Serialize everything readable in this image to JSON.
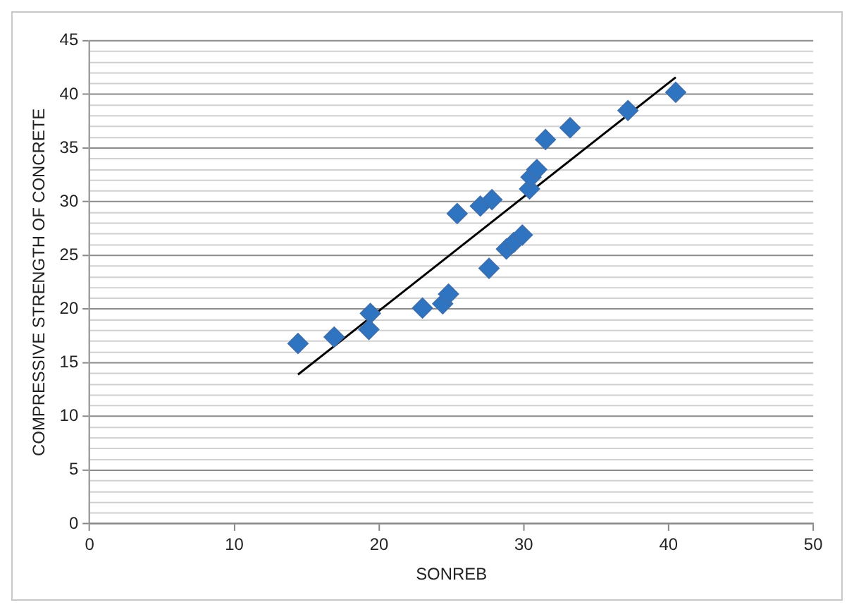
{
  "chart_data": {
    "type": "scatter",
    "xlabel": "SONREB",
    "ylabel": "COMPRESSIVE STRENGTH OF CONCRETE",
    "xlim": [
      0,
      50
    ],
    "xticks": [
      0,
      10,
      20,
      30,
      40,
      50
    ],
    "ylim": [
      0,
      45
    ],
    "yticks": [
      0,
      {
        "value": 1,
        "label": null
      },
      {
        "value": 2,
        "label": null
      },
      {
        "value": 3,
        "label": null
      },
      {
        "value": 4,
        "label": null
      },
      5,
      {
        "value": 6,
        "label": null
      },
      {
        "value": 7,
        "label": null
      },
      {
        "value": 8,
        "label": null
      },
      {
        "value": 9,
        "label": null
      },
      10,
      {
        "value": 11,
        "label": null
      },
      {
        "value": 12,
        "label": null
      },
      {
        "value": 13,
        "label": null
      },
      {
        "value": 14,
        "label": null
      },
      15,
      {
        "value": 16,
        "label": null
      },
      {
        "value": 17,
        "label": null
      },
      {
        "value": 18,
        "label": null
      },
      {
        "value": 19,
        "label": null
      },
      20,
      {
        "value": 21,
        "label": null
      },
      {
        "value": 22,
        "label": null
      },
      {
        "value": 23,
        "label": null
      },
      {
        "value": 24,
        "label": null
      },
      25,
      {
        "value": 26,
        "label": null
      },
      {
        "value": 27,
        "label": null
      },
      {
        "value": 28,
        "label": null
      },
      {
        "value": 29,
        "label": null
      },
      30,
      {
        "value": 31,
        "label": null
      },
      {
        "value": 32,
        "label": null
      },
      {
        "value": 33,
        "label": null
      },
      {
        "value": 34,
        "label": null
      },
      35,
      {
        "value": 36,
        "label": null
      },
      {
        "value": 37,
        "label": null
      },
      {
        "value": 38,
        "label": null
      },
      {
        "value": 39,
        "label": null
      },
      40,
      {
        "value": 41,
        "label": null
      },
      {
        "value": 42,
        "label": null
      },
      {
        "value": 43,
        "label": null
      },
      {
        "value": 44,
        "label": null
      },
      45
    ],
    "grid": "y",
    "legend": false,
    "series": [
      {
        "type": "scatter",
        "color": "#2e74c0",
        "marker": "diamond",
        "x": [
          14.4,
          16.9,
          19.4,
          19.3,
          23,
          24.4,
          24.8,
          25.4,
          27.6,
          27,
          27.8,
          28.8,
          29.3,
          29.9,
          30.4,
          30.5,
          30.9,
          31.5,
          33.2,
          37.2,
          40.5
        ],
        "values": [
          16.8,
          17.4,
          19.6,
          18.1,
          20.1,
          20.5,
          21.4,
          28.9,
          23.8,
          29.6,
          30.2,
          25.6,
          26.2,
          26.9,
          31.2,
          32.3,
          33,
          35.8,
          36.9,
          38.5,
          40.2
        ]
      },
      {
        "type": "line",
        "color": "#000000",
        "marker": "none",
        "line_style": "solid",
        "x": [
          14.4,
          40.5
        ],
        "values": [
          13.9,
          41.6
        ]
      }
    ]
  }
}
